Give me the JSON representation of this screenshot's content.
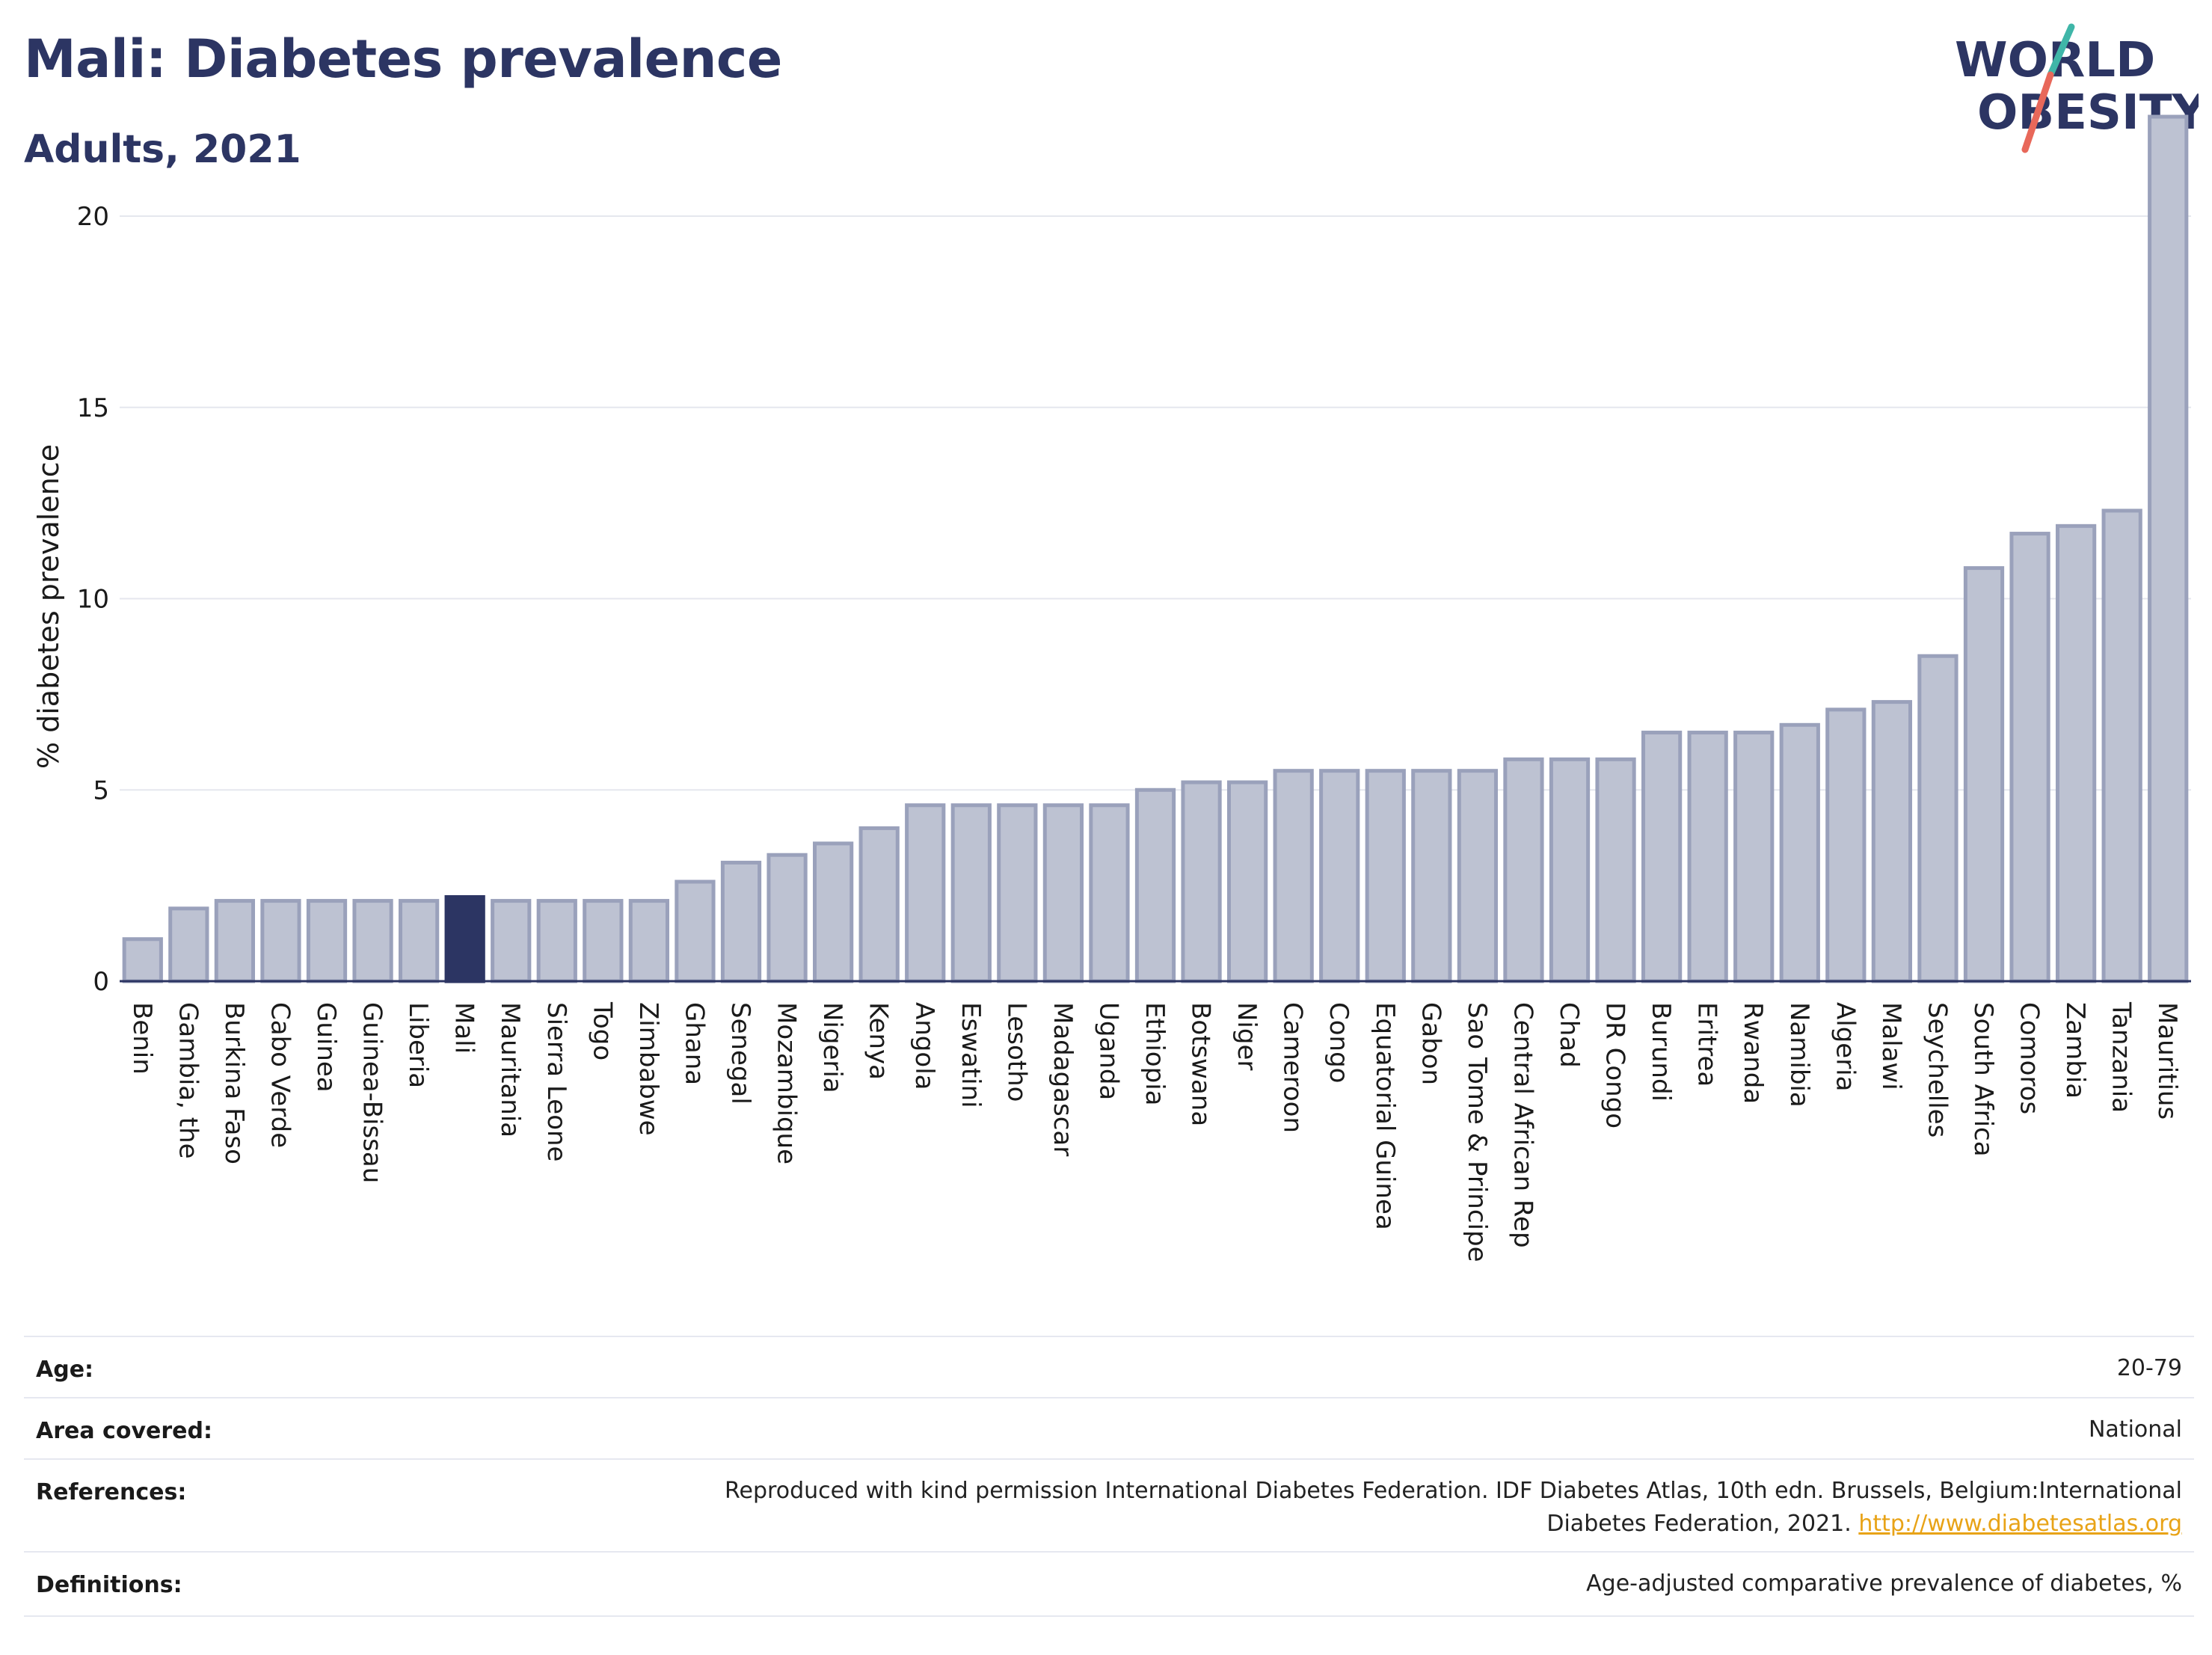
{
  "header": {
    "title": "Mali: Diabetes prevalence",
    "subtitle": "Adults, 2021"
  },
  "logo": {
    "line1": "WORLD",
    "line2": "OBESITY",
    "slash_colors": [
      "#3fb6a8",
      "#e8685a"
    ],
    "text_color": "#2c3563"
  },
  "chart_data": {
    "type": "bar",
    "ylabel": "% diabetes prevalence",
    "xlabel": "",
    "ylim": [
      0,
      23.5
    ],
    "yticks": [
      0,
      5,
      10,
      15,
      20
    ],
    "grid": true,
    "highlight": "Mali",
    "colors": {
      "bar_fill": "#bdc2d2",
      "bar_stroke": "#9aa1bb",
      "highlight_fill": "#2c3563",
      "grid": "#e5e7ee",
      "axis": "#2c3563"
    },
    "categories": [
      "Benin",
      "Gambia, the",
      "Burkina Faso",
      "Cabo Verde",
      "Guinea",
      "Guinea-Bissau",
      "Liberia",
      "Mali",
      "Mauritania",
      "Sierra Leone",
      "Togo",
      "Zimbabwe",
      "Ghana",
      "Senegal",
      "Mozambique",
      "Nigeria",
      "Kenya",
      "Angola",
      "Eswatini",
      "Lesotho",
      "Madagascar",
      "Uganda",
      "Ethiopia",
      "Botswana",
      "Niger",
      "Cameroon",
      "Congo",
      "Equatorial Guinea",
      "Gabon",
      "Sao Tome & Principe",
      "Central African Rep",
      "Chad",
      "DR Congo",
      "Burundi",
      "Eritrea",
      "Rwanda",
      "Namibia",
      "Algeria",
      "Malawi",
      "Seychelles",
      "South Africa",
      "Comoros",
      "Zambia",
      "Tanzania",
      "Mauritius"
    ],
    "values": [
      1.1,
      1.9,
      2.1,
      2.1,
      2.1,
      2.1,
      2.1,
      2.2,
      2.1,
      2.1,
      2.1,
      2.1,
      2.6,
      3.1,
      3.3,
      3.6,
      4.0,
      4.6,
      4.6,
      4.6,
      4.6,
      4.6,
      5.0,
      5.2,
      5.2,
      5.5,
      5.5,
      5.5,
      5.5,
      5.5,
      5.8,
      5.8,
      5.8,
      6.5,
      6.5,
      6.5,
      6.7,
      7.1,
      7.3,
      8.5,
      10.8,
      11.7,
      11.9,
      12.3,
      22.6
    ]
  },
  "meta": {
    "age_label": "Age:",
    "age_value": "20-79",
    "area_label": "Area covered:",
    "area_value": "National",
    "references_label": "References:",
    "references_line1": "Reproduced with kind permission International Diabetes Federation.  IDF Diabetes Atlas, 10th edn. Brussels, Belgium:International",
    "references_line2": "Diabetes Federation, 2021.",
    "references_link": "http://www.diabetesatlas.org",
    "definitions_label": "Definitions:",
    "definitions_value": "Age-adjusted comparative prevalence of diabetes, %"
  }
}
